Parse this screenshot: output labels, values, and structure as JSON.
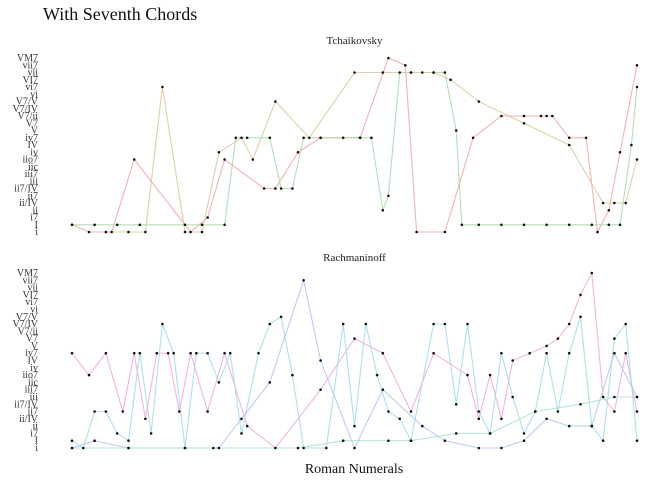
{
  "chart_data": {
    "type": "line",
    "title": "With Seventh Chords",
    "xlabel": "Roman Numerals",
    "ylabel": "",
    "grid": false,
    "legend": "none",
    "y_categories": [
      "i",
      "I",
      "i7",
      "ii",
      "ii/IV",
      "ii7",
      "ii7/IV",
      "iii",
      "iii7",
      "iic",
      "iio7",
      "iv",
      "IV",
      "iv7",
      "V",
      "V7",
      "V7/ii",
      "V7/IV",
      "V7/V",
      "vi",
      "vi7",
      "VI7",
      "vii",
      "vii7",
      "VM7"
    ],
    "panels": [
      {
        "title": "Tchaikovsky",
        "x_range": [
          0,
          100
        ],
        "series": [
          {
            "color": "#f5a3a3",
            "points": [
              [
                0,
                1
              ],
              [
                3,
                0
              ],
              [
                7,
                0
              ],
              [
                11,
                10
              ],
              [
                21,
                0
              ],
              [
                24,
                2
              ],
              [
                27,
                10
              ],
              [
                34,
                6
              ],
              [
                36,
                6
              ],
              [
                40,
                11
              ],
              [
                44,
                13
              ],
              [
                51,
                13
              ],
              [
                56,
                24
              ],
              [
                59,
                23
              ],
              [
                61,
                0
              ],
              [
                66,
                0
              ],
              [
                71,
                13
              ],
              [
                76,
                16
              ],
              [
                80,
                16
              ],
              [
                83,
                16
              ],
              [
                84,
                16
              ],
              [
                85,
                16
              ],
              [
                88,
                13
              ],
              [
                91,
                13
              ],
              [
                93,
                0
              ],
              [
                95,
                3
              ],
              [
                97,
                11
              ],
              [
                100,
                23
              ]
            ]
          },
          {
            "color": "#a8d8a8",
            "points": [
              [
                0,
                1
              ],
              [
                4,
                1
              ],
              [
                8,
                1
              ],
              [
                12,
                1
              ],
              [
                20,
                1
              ],
              [
                23,
                1
              ],
              [
                27,
                1
              ],
              [
                29,
                13
              ],
              [
                31,
                13
              ],
              [
                35,
                13
              ],
              [
                37,
                6
              ],
              [
                39,
                6
              ],
              [
                41,
                13
              ],
              [
                44,
                13
              ],
              [
                48,
                13
              ],
              [
                51,
                13
              ],
              [
                53,
                13
              ],
              [
                55,
                3
              ],
              [
                56,
                5
              ],
              [
                58,
                22
              ],
              [
                60,
                22
              ],
              [
                62,
                22
              ],
              [
                64,
                22
              ],
              [
                66,
                22
              ],
              [
                68,
                14
              ],
              [
                69,
                1
              ],
              [
                72,
                1
              ],
              [
                76,
                1
              ],
              [
                80,
                1
              ],
              [
                84,
                1
              ],
              [
                88,
                1
              ],
              [
                92,
                1
              ],
              [
                95,
                1
              ],
              [
                97,
                1
              ],
              [
                99,
                12
              ],
              [
                100,
                20
              ]
            ]
          },
          {
            "color": "#d8c89a",
            "points": [
              [
                6,
                0
              ],
              [
                10,
                0
              ],
              [
                13,
                0
              ],
              [
                16,
                20
              ],
              [
                20,
                0
              ],
              [
                23,
                0
              ],
              [
                26,
                11
              ],
              [
                30,
                13
              ],
              [
                32,
                10
              ],
              [
                36,
                18
              ],
              [
                42,
                13
              ],
              [
                50,
                22
              ],
              [
                55,
                22
              ],
              [
                60,
                22
              ],
              [
                64,
                22
              ],
              [
                67,
                21
              ],
              [
                72,
                18
              ],
              [
                80,
                15
              ],
              [
                88,
                12
              ],
              [
                94,
                4
              ],
              [
                96,
                4
              ],
              [
                98,
                4
              ],
              [
                100,
                10
              ]
            ]
          }
        ]
      },
      {
        "title": "Rachmaninoff",
        "x_range": [
          0,
          100
        ],
        "series": [
          {
            "color": "#f5a6dc",
            "points": [
              [
                0,
                13
              ],
              [
                3,
                10
              ],
              [
                6,
                13
              ],
              [
                9,
                5
              ],
              [
                11,
                13
              ],
              [
                13,
                4
              ],
              [
                15,
                13
              ],
              [
                17,
                13
              ],
              [
                19,
                5
              ],
              [
                21,
                13
              ],
              [
                24,
                5
              ],
              [
                27,
                13
              ],
              [
                31,
                3
              ],
              [
                36,
                0
              ],
              [
                44,
                8
              ],
              [
                50,
                15
              ],
              [
                55,
                13
              ],
              [
                60,
                5
              ],
              [
                64,
                13
              ],
              [
                70,
                10
              ],
              [
                72,
                4
              ],
              [
                74,
                10
              ],
              [
                76,
                4
              ],
              [
                78,
                12
              ],
              [
                81,
                13
              ],
              [
                84,
                14
              ],
              [
                86,
                15
              ],
              [
                88,
                17
              ],
              [
                90,
                21
              ],
              [
                92,
                24
              ],
              [
                94,
                7
              ],
              [
                96,
                5
              ],
              [
                98,
                13
              ],
              [
                100,
                5
              ]
            ]
          },
          {
            "color": "#9fdce8",
            "points": [
              [
                0,
                1
              ],
              [
                2,
                0
              ],
              [
                4,
                5
              ],
              [
                6,
                5
              ],
              [
                8,
                2
              ],
              [
                10,
                1
              ],
              [
                12,
                13
              ],
              [
                14,
                2
              ],
              [
                16,
                17
              ],
              [
                18,
                13
              ],
              [
                20,
                0
              ],
              [
                22,
                13
              ],
              [
                24,
                13
              ],
              [
                26,
                9
              ],
              [
                28,
                13
              ],
              [
                30,
                2
              ],
              [
                33,
                13
              ],
              [
                35,
                17
              ],
              [
                37,
                18
              ],
              [
                39,
                10
              ],
              [
                41,
                0
              ],
              [
                45,
                0
              ],
              [
                48,
                17
              ],
              [
                50,
                3
              ],
              [
                52,
                17
              ],
              [
                54,
                10
              ],
              [
                56,
                5
              ],
              [
                58,
                4
              ],
              [
                60,
                1
              ],
              [
                64,
                17
              ],
              [
                66,
                17
              ],
              [
                68,
                6
              ],
              [
                70,
                17
              ],
              [
                72,
                5
              ],
              [
                74,
                2
              ],
              [
                76,
                13
              ],
              [
                78,
                7
              ],
              [
                80,
                2
              ],
              [
                82,
                5
              ],
              [
                84,
                13
              ],
              [
                86,
                5
              ],
              [
                88,
                13
              ],
              [
                90,
                18
              ],
              [
                92,
                3
              ],
              [
                94,
                1
              ],
              [
                96,
                15
              ],
              [
                98,
                17
              ],
              [
                100,
                1
              ]
            ]
          },
          {
            "color": "#b0c4f5",
            "points": [
              [
                0,
                0
              ],
              [
                4,
                1
              ],
              [
                10,
                0
              ],
              [
                20,
                0
              ],
              [
                26,
                0
              ],
              [
                30,
                4
              ],
              [
                35,
                9
              ],
              [
                41,
                23
              ],
              [
                44,
                12
              ],
              [
                50,
                0
              ],
              [
                55,
                8
              ],
              [
                62,
                3
              ],
              [
                66,
                1
              ],
              [
                72,
                0
              ],
              [
                76,
                0
              ],
              [
                80,
                1
              ],
              [
                84,
                4
              ],
              [
                88,
                3
              ],
              [
                92,
                3
              ],
              [
                96,
                13
              ],
              [
                100,
                7
              ]
            ]
          },
          {
            "color": "#a8e0d0",
            "points": [
              [
                0,
                0
              ],
              [
                10,
                0
              ],
              [
                25,
                0
              ],
              [
                40,
                0
              ],
              [
                48,
                1
              ],
              [
                56,
                1
              ],
              [
                60,
                1
              ],
              [
                68,
                2
              ],
              [
                74,
                2
              ],
              [
                82,
                5
              ],
              [
                90,
                6
              ],
              [
                96,
                7
              ],
              [
                100,
                7
              ]
            ]
          }
        ]
      }
    ]
  }
}
